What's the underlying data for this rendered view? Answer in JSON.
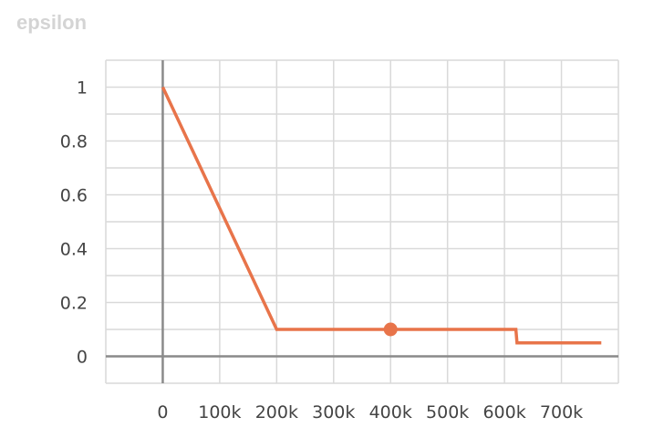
{
  "chart_data": {
    "type": "line",
    "title": "epsilon",
    "xlabel": "",
    "ylabel": "",
    "xlim": [
      -100000,
      800000
    ],
    "ylim": [
      -0.1,
      1.1
    ],
    "xticks": [
      0,
      100000,
      200000,
      300000,
      400000,
      500000,
      600000,
      700000
    ],
    "xtick_labels": [
      "0",
      "100k",
      "200k",
      "300k",
      "400k",
      "500k",
      "600k",
      "700k"
    ],
    "yticks": [
      0,
      0.2,
      0.4,
      0.6,
      0.8,
      1
    ],
    "ytick_labels": [
      "0",
      "0.2",
      "0.4",
      "0.6",
      "0.8",
      "1"
    ],
    "grid": true,
    "series": [
      {
        "color": "#e8744a",
        "x": [
          0,
          200000,
          620000,
          622000,
          770000
        ],
        "y": [
          1.0,
          0.1,
          0.1,
          0.05,
          0.05
        ]
      }
    ],
    "highlight": {
      "x": 400000,
      "y": 0.1
    }
  }
}
